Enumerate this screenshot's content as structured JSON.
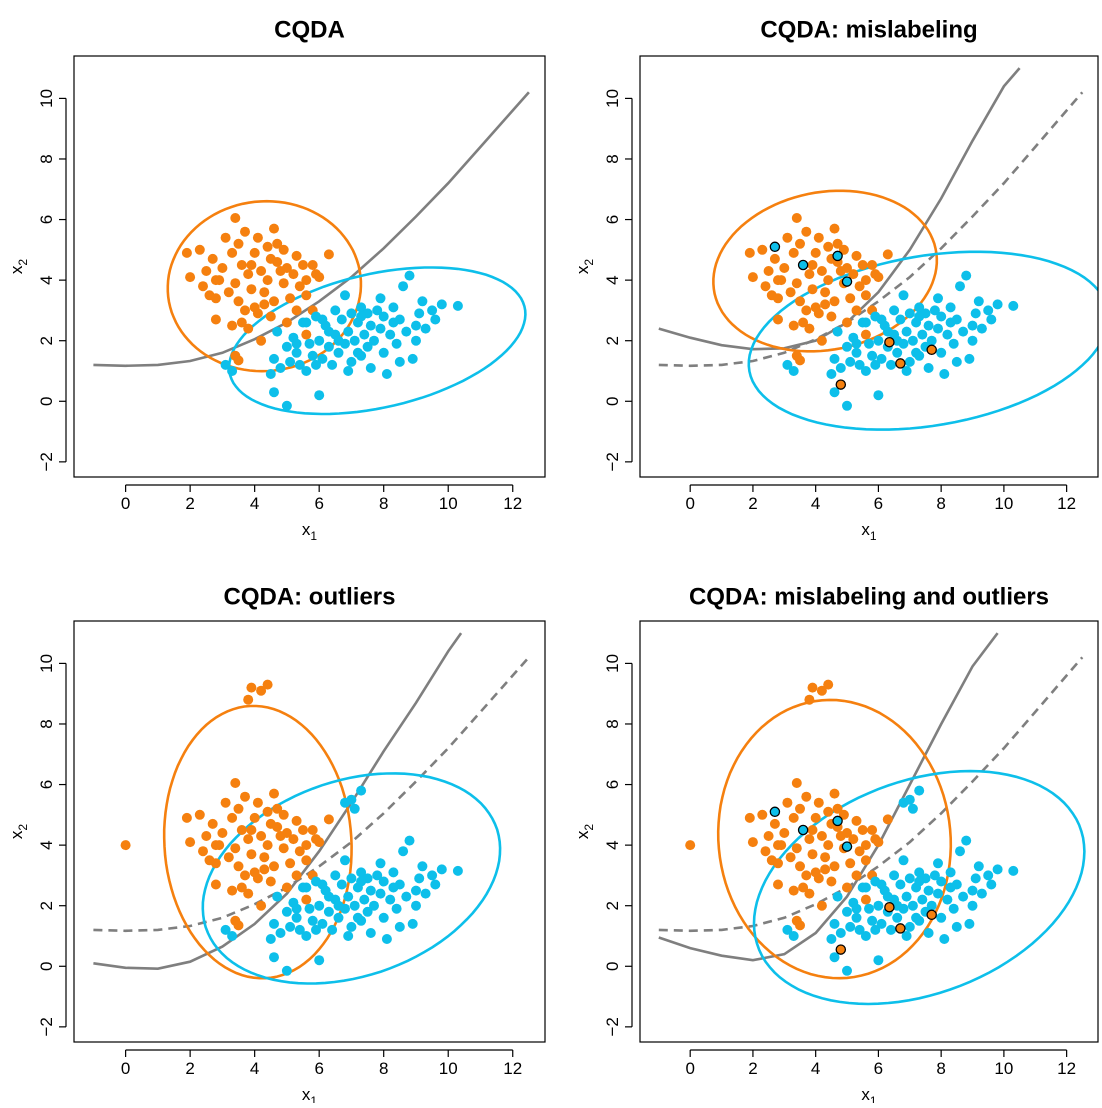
{
  "colors": {
    "orange": "#F5800F",
    "cyan": "#0DBFEA",
    "curve": "#7F7F7F",
    "frame": "#000000",
    "outline": "#000000"
  },
  "axes": {
    "x_ticks": [
      "0",
      "2",
      "4",
      "6",
      "8",
      "10",
      "12"
    ],
    "y_ticks": [
      "−2",
      "0",
      "2",
      "4",
      "6",
      "8",
      "10"
    ],
    "x_tick_values": [
      0,
      2,
      4,
      6,
      8,
      10,
      12
    ],
    "y_tick_values": [
      -2,
      0,
      2,
      4,
      6,
      8,
      10
    ],
    "xlim": [
      -1.6,
      13.0
    ],
    "ylim": [
      -2.5,
      11.4
    ],
    "xlabel": "x",
    "xlabel_sub": "1",
    "ylabel": "x",
    "ylabel_sub": "2"
  },
  "base_points": {
    "orange": [
      [
        1.9,
        4.9
      ],
      [
        2.0,
        4.1
      ],
      [
        2.3,
        5.0
      ],
      [
        2.4,
        3.8
      ],
      [
        2.5,
        4.3
      ],
      [
        2.6,
        3.5
      ],
      [
        2.7,
        4.7
      ],
      [
        2.8,
        3.4
      ],
      [
        2.8,
        2.7
      ],
      [
        2.9,
        4.0
      ],
      [
        3.0,
        4.4
      ],
      [
        3.1,
        5.4
      ],
      [
        3.2,
        3.6
      ],
      [
        3.3,
        4.9
      ],
      [
        3.3,
        2.5
      ],
      [
        3.4,
        6.05
      ],
      [
        3.4,
        3.9
      ],
      [
        3.5,
        5.2
      ],
      [
        3.5,
        3.3
      ],
      [
        3.6,
        4.5
      ],
      [
        3.7,
        3.0
      ],
      [
        3.7,
        5.6
      ],
      [
        3.8,
        4.2
      ],
      [
        3.8,
        2.4
      ],
      [
        3.9,
        3.7
      ],
      [
        4.0,
        4.9
      ],
      [
        4.0,
        3.1
      ],
      [
        4.1,
        5.4
      ],
      [
        4.1,
        2.9
      ],
      [
        4.2,
        4.3
      ],
      [
        4.3,
        3.6
      ],
      [
        4.4,
        5.1
      ],
      [
        4.4,
        4.0
      ],
      [
        4.5,
        2.8
      ],
      [
        4.5,
        4.7
      ],
      [
        4.6,
        3.3
      ],
      [
        4.7,
        4.6
      ],
      [
        4.7,
        5.2
      ],
      [
        4.8,
        4.3
      ],
      [
        4.9,
        3.9
      ],
      [
        5.0,
        4.4
      ],
      [
        5.1,
        3.4
      ],
      [
        5.2,
        4.2
      ],
      [
        5.3,
        4.8
      ],
      [
        5.4,
        3.8
      ],
      [
        5.5,
        4.5
      ],
      [
        5.6,
        3.5
      ],
      [
        5.6,
        4.0
      ],
      [
        5.8,
        3.0
      ],
      [
        5.9,
        4.2
      ],
      [
        6.0,
        4.1
      ],
      [
        4.3,
        3.2
      ],
      [
        3.6,
        2.6
      ],
      [
        5.0,
        2.6
      ],
      [
        4.2,
        2.0
      ],
      [
        3.4,
        1.5
      ],
      [
        3.5,
        1.35
      ],
      [
        5.6,
        2.2
      ],
      [
        2.8,
        4.0
      ],
      [
        4.9,
        5.0
      ],
      [
        3.9,
        4.5
      ],
      [
        5.8,
        4.5
      ],
      [
        6.3,
        4.85
      ],
      [
        4.6,
        5.7
      ],
      [
        5.3,
        3.0
      ]
    ],
    "cyan": [
      [
        3.1,
        1.2
      ],
      [
        3.3,
        1.0
      ],
      [
        4.5,
        0.9
      ],
      [
        4.6,
        1.4
      ],
      [
        4.6,
        0.3
      ],
      [
        4.7,
        2.3
      ],
      [
        4.8,
        1.1
      ],
      [
        5.0,
        -0.15
      ],
      [
        5.0,
        1.8
      ],
      [
        5.1,
        1.3
      ],
      [
        5.2,
        2.1
      ],
      [
        5.3,
        1.6
      ],
      [
        5.4,
        1.2
      ],
      [
        5.5,
        2.6
      ],
      [
        5.6,
        1.0
      ],
      [
        5.7,
        1.9
      ],
      [
        5.8,
        1.5
      ],
      [
        5.9,
        1.2
      ],
      [
        5.9,
        2.8
      ],
      [
        6.0,
        0.2
      ],
      [
        6.0,
        2.0
      ],
      [
        6.1,
        1.4
      ],
      [
        6.2,
        2.5
      ],
      [
        6.3,
        1.8
      ],
      [
        6.4,
        1.2
      ],
      [
        6.5,
        2.2
      ],
      [
        6.5,
        3.0
      ],
      [
        6.6,
        1.6
      ],
      [
        6.7,
        2.7
      ],
      [
        6.8,
        3.5
      ],
      [
        6.8,
        1.9
      ],
      [
        6.9,
        2.3
      ],
      [
        7.0,
        1.3
      ],
      [
        7.0,
        2.9
      ],
      [
        7.1,
        2.0
      ],
      [
        7.2,
        1.6
      ],
      [
        7.2,
        2.6
      ],
      [
        7.3,
        3.1
      ],
      [
        7.4,
        2.2
      ],
      [
        7.5,
        1.8
      ],
      [
        7.5,
        2.9
      ],
      [
        7.6,
        1.1
      ],
      [
        7.6,
        2.5
      ],
      [
        7.7,
        2.0
      ],
      [
        7.8,
        3.0
      ],
      [
        7.9,
        2.4
      ],
      [
        8.0,
        1.6
      ],
      [
        8.0,
        2.8
      ],
      [
        8.1,
        0.9
      ],
      [
        8.2,
        2.2
      ],
      [
        8.3,
        3.1
      ],
      [
        8.4,
        1.9
      ],
      [
        8.5,
        2.7
      ],
      [
        8.6,
        3.8
      ],
      [
        8.7,
        2.3
      ],
      [
        8.8,
        4.15
      ],
      [
        8.9,
        1.4
      ],
      [
        9.0,
        2.0
      ],
      [
        9.1,
        2.9
      ],
      [
        9.2,
        3.3
      ],
      [
        9.3,
        2.4
      ],
      [
        9.5,
        3.0
      ],
      [
        9.6,
        2.7
      ],
      [
        9.8,
        3.2
      ],
      [
        10.3,
        3.15
      ],
      [
        6.3,
        2.3
      ],
      [
        5.6,
        2.6
      ],
      [
        6.9,
        1.0
      ],
      [
        7.3,
        1.5
      ],
      [
        8.5,
        1.3
      ],
      [
        9.0,
        2.5
      ],
      [
        5.3,
        1.9
      ],
      [
        6.1,
        2.7
      ],
      [
        7.9,
        3.4
      ],
      [
        6.6,
        2.0
      ],
      [
        7.3,
        2.8
      ],
      [
        8.3,
        2.6
      ]
    ]
  },
  "flagged_points": {
    "cyan_marked_orange": [
      [
        2.7,
        5.1
      ],
      [
        3.6,
        4.5
      ],
      [
        4.7,
        4.8
      ],
      [
        5.0,
        3.95
      ]
    ],
    "orange_marked_cyan": [
      [
        6.35,
        1.95
      ],
      [
        6.7,
        1.25
      ],
      [
        7.7,
        1.7
      ],
      [
        4.8,
        0.55
      ]
    ]
  },
  "outlier_points": {
    "orange": [
      [
        0.0,
        4.0
      ],
      [
        3.8,
        8.8
      ],
      [
        3.9,
        9.2
      ],
      [
        4.2,
        9.1
      ],
      [
        4.4,
        9.3
      ]
    ],
    "cyan": [
      [
        6.8,
        5.4
      ],
      [
        7.0,
        5.5
      ],
      [
        7.1,
        5.2
      ],
      [
        7.3,
        5.8
      ]
    ]
  },
  "chart_data": [
    {
      "type": "scatter",
      "title": "CQDA",
      "xlabel": "x₁",
      "ylabel": "x₂",
      "xlim": [
        -1.6,
        13.0
      ],
      "ylim": [
        -2.5,
        11.4
      ],
      "series": [
        {
          "name": "",
          "color": "#F5800F",
          "points": "base_points.orange"
        },
        {
          "name": "",
          "color": "#0DBFEA",
          "points": "base_points.cyan"
        }
      ],
      "ellipses": [
        {
          "color": "#F5800F",
          "center": [
            4.3,
            3.8
          ],
          "a": 3.0,
          "b": 2.8,
          "angle_deg": 10
        },
        {
          "color": "#0DBFEA",
          "center": [
            7.8,
            2.0
          ],
          "a": 4.7,
          "b": 2.2,
          "angle_deg": 14
        }
      ],
      "curves": [
        {
          "style": "solid",
          "x": [
            -1.0,
            0.0,
            1.0,
            2.0,
            3.0,
            4.0,
            5.0,
            6.0,
            7.0,
            8.0,
            9.0,
            10.0,
            11.0,
            12.0,
            12.5
          ],
          "y": [
            1.2,
            1.17,
            1.2,
            1.33,
            1.6,
            2.05,
            2.6,
            3.3,
            4.1,
            5.05,
            6.1,
            7.2,
            8.4,
            9.6,
            10.2
          ]
        }
      ]
    },
    {
      "type": "scatter",
      "title": "CQDA: mislabeling",
      "xlabel": "x₁",
      "ylabel": "x₂",
      "xlim": [
        -1.6,
        13.0
      ],
      "ylim": [
        -2.5,
        11.4
      ],
      "series": [
        {
          "name": "",
          "color": "#F5800F",
          "points": "base_points.orange"
        },
        {
          "name": "",
          "color": "#0DBFEA",
          "points": "base_points.cyan"
        }
      ],
      "marked_points": "flagged_points",
      "ellipses": [
        {
          "color": "#F5800F",
          "center": [
            4.3,
            4.3
          ],
          "a": 3.6,
          "b": 2.6,
          "angle_deg": 12
        },
        {
          "color": "#0DBFEA",
          "center": [
            7.6,
            2.0
          ],
          "a": 5.8,
          "b": 2.8,
          "angle_deg": 10
        }
      ],
      "curves": [
        {
          "style": "solid",
          "x": [
            -1.0,
            0.0,
            1.0,
            2.0,
            3.0,
            4.0,
            5.0,
            6.0,
            7.0,
            8.0,
            9.0,
            10.0,
            10.5
          ],
          "y": [
            2.4,
            2.1,
            1.85,
            1.72,
            1.75,
            2.0,
            2.6,
            3.6,
            5.0,
            6.7,
            8.6,
            10.4,
            11.0
          ]
        },
        {
          "style": "dashed",
          "x": [
            -1.0,
            0.0,
            1.0,
            2.0,
            3.0,
            4.0,
            5.0,
            6.0,
            7.0,
            8.0,
            9.0,
            10.0,
            11.0,
            12.0,
            12.5
          ],
          "y": [
            1.2,
            1.17,
            1.2,
            1.33,
            1.6,
            2.05,
            2.6,
            3.3,
            4.1,
            5.05,
            6.1,
            7.2,
            8.4,
            9.6,
            10.2
          ]
        }
      ]
    },
    {
      "type": "scatter",
      "title": "CQDA: outliers",
      "xlabel": "x₁",
      "ylabel": "x₂",
      "xlim": [
        -1.6,
        13.0
      ],
      "ylim": [
        -2.5,
        11.4
      ],
      "series": [
        {
          "name": "",
          "color": "#F5800F",
          "points": "base_points.orange"
        },
        {
          "name": "",
          "color": "#0DBFEA",
          "points": "base_points.cyan"
        }
      ],
      "extra_points": "outlier_points",
      "ellipses": [
        {
          "color": "#F5800F",
          "center": [
            4.1,
            4.1
          ],
          "a": 4.5,
          "b": 2.9,
          "angle_deg": 93
        },
        {
          "color": "#0DBFEA",
          "center": [
            7.0,
            2.9
          ],
          "a": 4.8,
          "b": 3.2,
          "angle_deg": 22
        }
      ],
      "curves": [
        {
          "style": "solid",
          "x": [
            -1.0,
            0.0,
            1.0,
            2.0,
            3.0,
            4.0,
            5.0,
            6.0,
            7.0,
            8.0,
            9.0,
            10.0,
            10.4
          ],
          "y": [
            0.1,
            -0.05,
            -0.08,
            0.15,
            0.65,
            1.4,
            2.4,
            3.8,
            5.4,
            7.1,
            8.7,
            10.4,
            11.0
          ]
        },
        {
          "style": "dashed",
          "x": [
            -1.0,
            0.0,
            1.0,
            2.0,
            3.0,
            4.0,
            5.0,
            6.0,
            7.0,
            8.0,
            9.0,
            10.0,
            11.0,
            12.0,
            12.5
          ],
          "y": [
            1.2,
            1.17,
            1.2,
            1.33,
            1.6,
            2.05,
            2.6,
            3.3,
            4.1,
            5.05,
            6.1,
            7.2,
            8.4,
            9.6,
            10.2
          ]
        }
      ]
    },
    {
      "type": "scatter",
      "title": "CQDA: mislabeling and outliers",
      "xlabel": "x₁",
      "ylabel": "x₂",
      "xlim": [
        -1.6,
        13.0
      ],
      "ylim": [
        -2.5,
        11.4
      ],
      "series": [
        {
          "name": "",
          "color": "#F5800F",
          "points": "base_points.orange"
        },
        {
          "name": "",
          "color": "#0DBFEA",
          "points": "base_points.cyan"
        }
      ],
      "extra_points": "outlier_points",
      "marked_points": "flagged_points",
      "ellipses": [
        {
          "color": "#F5800F",
          "center": [
            4.6,
            4.2
          ],
          "a": 4.6,
          "b": 3.7,
          "angle_deg": 95
        },
        {
          "color": "#0DBFEA",
          "center": [
            7.3,
            2.6
          ],
          "a": 5.5,
          "b": 3.5,
          "angle_deg": 22
        }
      ],
      "curves": [
        {
          "style": "solid",
          "x": [
            -1.0,
            0.0,
            1.0,
            2.0,
            3.0,
            4.0,
            5.0,
            6.0,
            7.0,
            8.0,
            9.0,
            9.8
          ],
          "y": [
            0.95,
            0.6,
            0.35,
            0.2,
            0.4,
            1.1,
            2.3,
            4.0,
            6.0,
            8.0,
            9.9,
            11.0
          ]
        },
        {
          "style": "dashed",
          "x": [
            -1.0,
            0.0,
            1.0,
            2.0,
            3.0,
            4.0,
            5.0,
            6.0,
            7.0,
            8.0,
            9.0,
            10.0,
            11.0,
            12.0,
            12.5
          ],
          "y": [
            1.2,
            1.17,
            1.2,
            1.33,
            1.6,
            2.05,
            2.6,
            3.3,
            4.1,
            5.05,
            6.1,
            7.2,
            8.4,
            9.6,
            10.2
          ]
        }
      ]
    }
  ]
}
